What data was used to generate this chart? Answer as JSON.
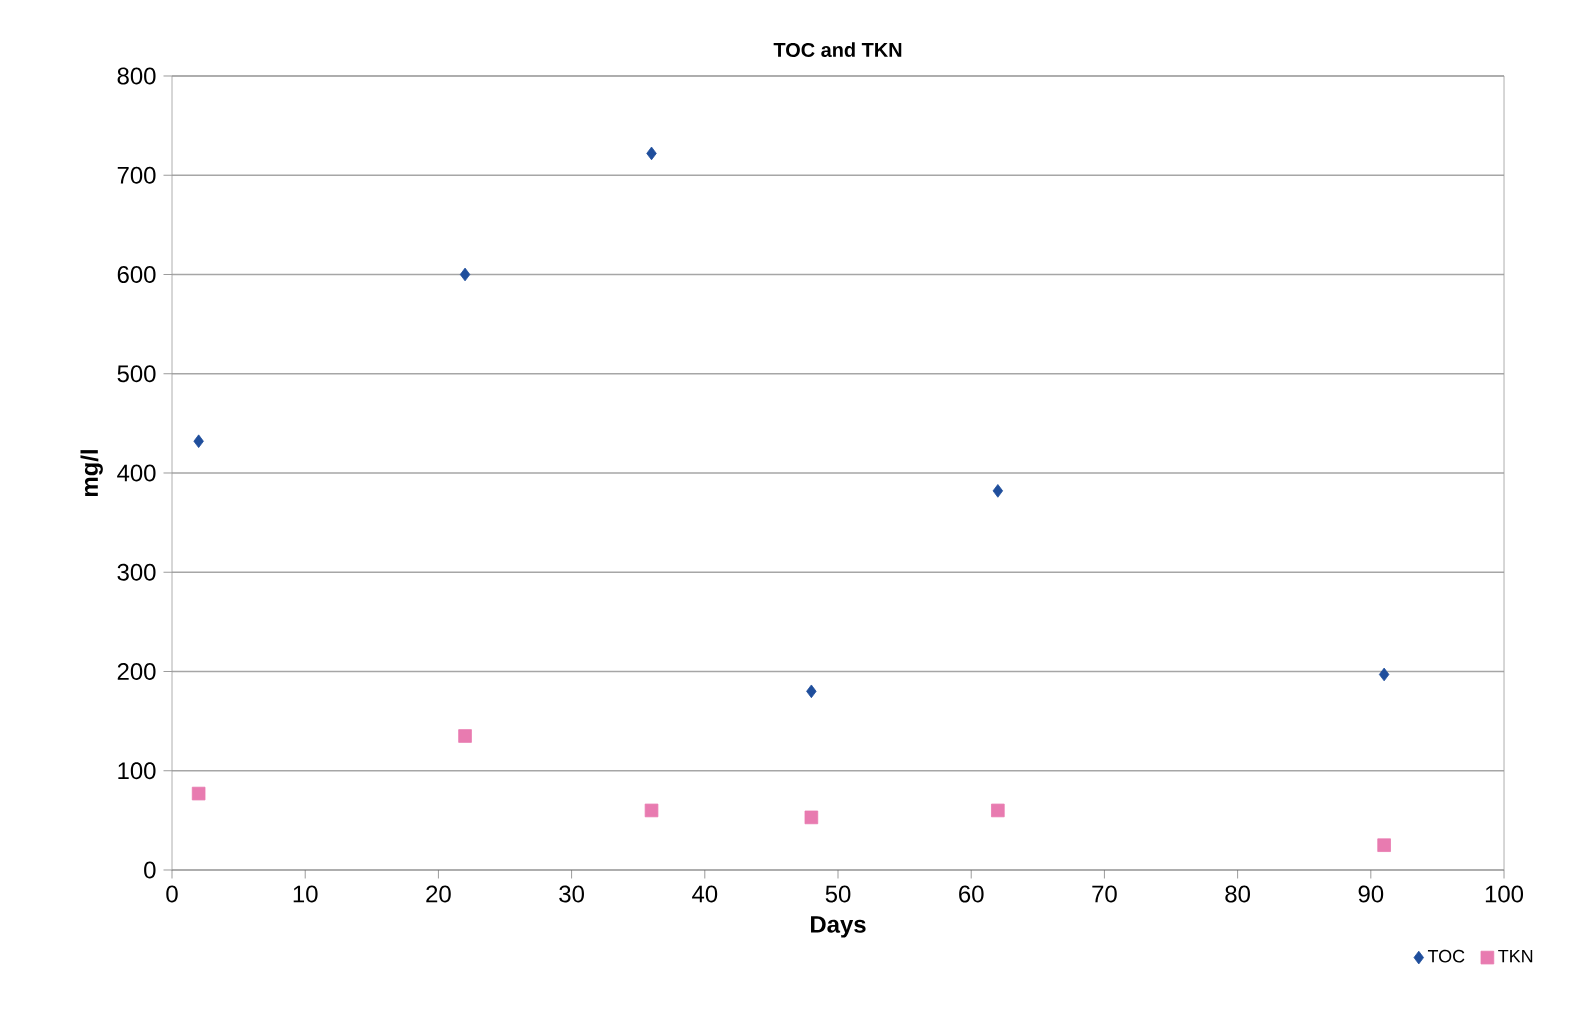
{
  "chart_data": {
    "type": "scatter",
    "title": "TOC and TKN",
    "xlabel": "Days",
    "ylabel": "mg/l",
    "x": [
      2,
      22,
      36,
      48,
      62,
      91
    ],
    "series": [
      {
        "name": "TOC",
        "color": "#1f4e9c",
        "marker": "diamond",
        "values": [
          432,
          600,
          722,
          180,
          382,
          197
        ]
      },
      {
        "name": "TKN",
        "color": "#e87bb0",
        "marker": "square",
        "values": [
          77,
          135,
          60,
          53,
          60,
          25
        ]
      }
    ],
    "xlim": [
      0,
      100
    ],
    "xticks": [
      0,
      10,
      20,
      30,
      40,
      50,
      60,
      70,
      80,
      90,
      100
    ],
    "ylim": [
      0,
      800
    ],
    "yticks": [
      0,
      100,
      200,
      300,
      400,
      500,
      600,
      700,
      800
    ],
    "grid": "y",
    "legend": "bottom right"
  }
}
